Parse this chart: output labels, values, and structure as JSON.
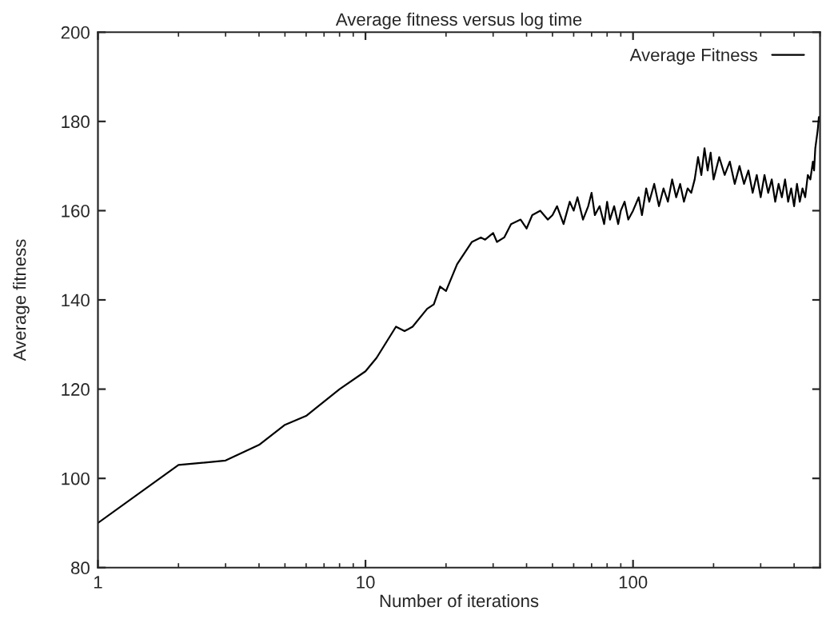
{
  "chart_data": {
    "type": "line",
    "title": "Average fitness versus log time",
    "xlabel": "Number of iterations",
    "ylabel": "Average fitness",
    "log": "x",
    "xlim": [
      1,
      500
    ],
    "xticks": [
      1,
      10,
      100
    ],
    "ylim": [
      80,
      200
    ],
    "yticks": [
      80,
      100,
      120,
      140,
      160,
      180,
      200
    ],
    "grid": false,
    "legend": "top right",
    "series": [
      {
        "name": "Average Fitness",
        "color": "#000000",
        "x": [
          1,
          2,
          3,
          4,
          5,
          6,
          8,
          10,
          11,
          13,
          14,
          15,
          17,
          18,
          19,
          20,
          22,
          25,
          27,
          28,
          30,
          31,
          33,
          35,
          38,
          40,
          42,
          45,
          48,
          50,
          52,
          55,
          58,
          60,
          62,
          65,
          68,
          70,
          72,
          75,
          78,
          80,
          82,
          85,
          88,
          90,
          93,
          96,
          100,
          105,
          108,
          112,
          115,
          120,
          125,
          130,
          135,
          140,
          145,
          150,
          155,
          160,
          165,
          170,
          175,
          180,
          185,
          190,
          195,
          200,
          210,
          220,
          230,
          240,
          250,
          260,
          270,
          280,
          290,
          300,
          310,
          320,
          330,
          340,
          350,
          360,
          370,
          380,
          390,
          400,
          410,
          420,
          430,
          440,
          450,
          460,
          470,
          475,
          480,
          490,
          495,
          500
        ],
        "values": [
          90,
          103,
          104,
          107.5,
          112,
          114,
          120,
          124,
          127,
          134,
          133,
          134,
          138,
          139,
          143,
          142,
          148,
          153,
          154,
          153.5,
          155,
          153,
          154,
          157,
          158,
          156,
          159,
          160,
          158,
          159,
          161,
          157,
          162,
          160,
          163,
          158,
          161,
          164,
          159,
          161,
          157,
          162,
          158,
          161,
          157,
          160,
          162,
          158,
          160,
          163,
          159,
          165,
          162,
          166,
          161,
          165,
          162,
          167,
          163,
          166,
          162,
          165,
          164,
          167,
          172,
          168,
          174,
          169,
          173,
          167,
          172,
          168,
          171,
          166,
          170,
          166,
          169,
          164,
          168,
          163,
          168,
          164,
          167,
          162,
          166,
          163,
          167,
          162,
          165,
          161,
          166,
          162,
          165,
          163,
          168,
          167,
          171,
          169,
          174,
          178,
          181,
          181
        ]
      }
    ]
  }
}
